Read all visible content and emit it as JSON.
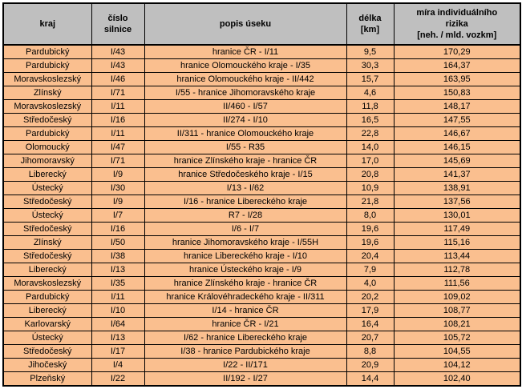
{
  "table": {
    "title": "mira-individualniho-rizika-useku-silnic",
    "colors": {
      "header_bg": "#bfbfbf",
      "row_bg": "#fabf8f",
      "border": "#000000"
    },
    "columns": [
      {
        "id": "kraj",
        "label": "kraj"
      },
      {
        "id": "cislo",
        "label": "číslo\nsilnice"
      },
      {
        "id": "popis",
        "label": "popis úseku"
      },
      {
        "id": "delka",
        "label": "délka\n[km]"
      },
      {
        "id": "mira",
        "label": "míra individuálního\nrizika\n[neh. / mld. vozkm]"
      }
    ],
    "rows": [
      [
        "Pardubický",
        "I/43",
        "hranice ČR - I/11",
        "9,5",
        "170,29"
      ],
      [
        "Pardubický",
        "I/43",
        "hranice Olomouckého kraje - I/35",
        "30,3",
        "164,37"
      ],
      [
        "Moravskoslezský",
        "I/46",
        "hranice Olomouckého kraje - II/442",
        "15,7",
        "163,95"
      ],
      [
        "Zlínský",
        "I/71",
        "I/55 - hranice Jihomoravského kraje",
        "4,6",
        "150,83"
      ],
      [
        "Moravskoslezský",
        "I/11",
        "II/460 - I/57",
        "11,8",
        "148,17"
      ],
      [
        "Středočeský",
        "I/16",
        "II/274 - I/10",
        "16,5",
        "147,55"
      ],
      [
        "Pardubický",
        "I/11",
        "II/311 - hranice Olomouckého kraje",
        "22,8",
        "146,67"
      ],
      [
        "Olomoucký",
        "I/47",
        "I/55 - R35",
        "14,0",
        "146,15"
      ],
      [
        "Jihomoravský",
        "I/71",
        "hranice Zlínského kraje - hranice ČR",
        "17,0",
        "145,69"
      ],
      [
        "Liberecký",
        "I/9",
        "hranice Středočeského kraje - I/15",
        "20,8",
        "141,37"
      ],
      [
        "Ústecký",
        "I/30",
        "I/13 - I/62",
        "10,9",
        "138,91"
      ],
      [
        "Středočeský",
        "I/9",
        "I/16 - hranice Libereckého kraje",
        "21,8",
        "137,56"
      ],
      [
        "Ústecký",
        "I/7",
        "R7 - I/28",
        "8,0",
        "130,01"
      ],
      [
        "Středočeský",
        "I/16",
        "I/6 - I/7",
        "19,6",
        "117,49"
      ],
      [
        "Zlínský",
        "I/50",
        "hranice Jihomoravského kraje - I/55H",
        "19,6",
        "115,16"
      ],
      [
        "Středočeský",
        "I/38",
        "hranice Libereckého kraje - I/10",
        "20,4",
        "113,44"
      ],
      [
        "Liberecký",
        "I/13",
        "hranice Ústeckého kraje - I/9",
        "7,9",
        "112,78"
      ],
      [
        "Moravskoslezský",
        "I/35",
        "hranice Zlínského kraje - hranice ČR",
        "4,0",
        "111,56"
      ],
      [
        "Pardubický",
        "I/11",
        "hranice Královéhradeckého kraje - II/311",
        "20,2",
        "109,02"
      ],
      [
        "Liberecký",
        "I/10",
        "I/14 - hranice ČR",
        "17,9",
        "108,77"
      ],
      [
        "Karlovarský",
        "I/64",
        "hranice ČR - I/21",
        "16,4",
        "108,21"
      ],
      [
        "Ústecký",
        "I/13",
        "I/62 - hranice Libereckého kraje",
        "20,7",
        "105,72"
      ],
      [
        "Středočeský",
        "I/17",
        "I/38 - hranice Pardubického kraje",
        "8,8",
        "104,55"
      ],
      [
        "Jihočeský",
        "I/4",
        "I/22 - II/171",
        "20,9",
        "104,12"
      ],
      [
        "Plzeňský",
        "I/22",
        "II/192 - I/27",
        "14,4",
        "102,40"
      ]
    ]
  }
}
